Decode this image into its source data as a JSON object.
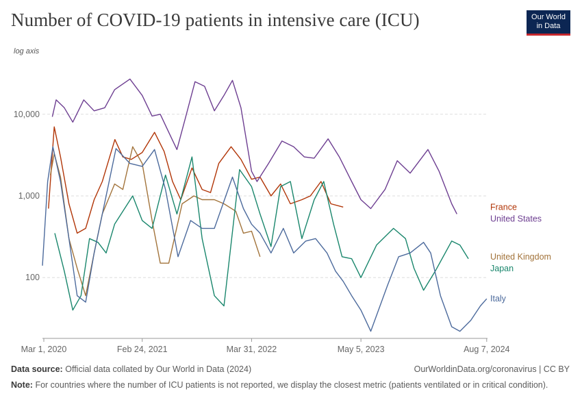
{
  "title": "Number of COVID-19 patients in intensive care (ICU)",
  "logo_text": [
    "Our World",
    "in Data"
  ],
  "axis_note": "log axis",
  "footer": {
    "source_label": "Data source:",
    "source_text": "Official data collated by Our World in Data (2024)",
    "note_label": "Note:",
    "note_text": "For countries where the number of ICU patients is not reported, we display the closest metric (patients ventilated or in critical condition).",
    "url": "OurWorldinData.org/coronavirus | CC BY"
  },
  "chart_data": {
    "type": "line",
    "title": "Number of COVID-19 patients in intensive care (ICU)",
    "yscale": "log",
    "ylim": [
      18,
      40000
    ],
    "xlim": [
      "2020-02-25",
      "2024-08-10"
    ],
    "y_ticks": [
      100,
      1000,
      10000
    ],
    "y_tick_labels": [
      "100",
      "1,000",
      "10,000"
    ],
    "x_ticks": [
      "2020-03-01",
      "2021-02-24",
      "2022-03-31",
      "2023-05-05",
      "2024-08-07"
    ],
    "x_tick_labels": [
      "Mar 1, 2020",
      "Feb 24, 2021",
      "Mar 31, 2022",
      "May 5, 2023",
      "Aug 7, 2024"
    ],
    "grid": "horizontal dashed",
    "legend": "line-end labels on right",
    "series": [
      {
        "name": "France",
        "color": "#b13507",
        "points": [
          [
            "2020-03-18",
            700
          ],
          [
            "2020-04-08",
            7000
          ],
          [
            "2020-05-01",
            3000
          ],
          [
            "2020-06-01",
            800
          ],
          [
            "2020-07-01",
            350
          ],
          [
            "2020-08-01",
            400
          ],
          [
            "2020-09-01",
            900
          ],
          [
            "2020-10-01",
            1500
          ],
          [
            "2020-11-16",
            4900
          ],
          [
            "2020-12-15",
            3000
          ],
          [
            "2021-01-15",
            2800
          ],
          [
            "2021-02-24",
            3400
          ],
          [
            "2021-04-10",
            6000
          ],
          [
            "2021-05-15",
            3500
          ],
          [
            "2021-06-15",
            1500
          ],
          [
            "2021-07-15",
            900
          ],
          [
            "2021-08-25",
            2200
          ],
          [
            "2021-10-01",
            1200
          ],
          [
            "2021-11-01",
            1100
          ],
          [
            "2021-12-01",
            2500
          ],
          [
            "2022-01-15",
            4000
          ],
          [
            "2022-02-20",
            2800
          ],
          [
            "2022-03-31",
            1600
          ],
          [
            "2022-05-01",
            1700
          ],
          [
            "2022-06-10",
            1000
          ],
          [
            "2022-07-15",
            1400
          ],
          [
            "2022-08-20",
            800
          ],
          [
            "2022-10-01",
            900
          ],
          [
            "2022-11-01",
            1000
          ],
          [
            "2022-12-10",
            1500
          ],
          [
            "2023-01-15",
            800
          ],
          [
            "2023-03-01",
            730
          ]
        ]
      },
      {
        "name": "United States",
        "color": "#6d3e91",
        "points": [
          [
            "2020-04-01",
            9300
          ],
          [
            "2020-04-15",
            15000
          ],
          [
            "2020-05-15",
            12000
          ],
          [
            "2020-06-15",
            8000
          ],
          [
            "2020-07-25",
            15000
          ],
          [
            "2020-09-01",
            11000
          ],
          [
            "2020-10-10",
            12000
          ],
          [
            "2020-11-15",
            20000
          ],
          [
            "2021-01-10",
            27000
          ],
          [
            "2021-02-24",
            17000
          ],
          [
            "2021-04-01",
            9500
          ],
          [
            "2021-05-01",
            10000
          ],
          [
            "2021-06-01",
            6000
          ],
          [
            "2021-07-01",
            3700
          ],
          [
            "2021-08-01",
            9000
          ],
          [
            "2021-09-05",
            25000
          ],
          [
            "2021-10-10",
            22000
          ],
          [
            "2021-11-15",
            11000
          ],
          [
            "2021-12-20",
            17000
          ],
          [
            "2022-01-20",
            26000
          ],
          [
            "2022-02-20",
            12000
          ],
          [
            "2022-03-31",
            2000
          ],
          [
            "2022-04-20",
            1500
          ],
          [
            "2022-06-01",
            2500
          ],
          [
            "2022-07-20",
            4700
          ],
          [
            "2022-09-01",
            4000
          ],
          [
            "2022-10-10",
            3000
          ],
          [
            "2022-11-15",
            2900
          ],
          [
            "2023-01-05",
            5000
          ],
          [
            "2023-02-15",
            3000
          ],
          [
            "2023-04-01",
            1500
          ],
          [
            "2023-05-05",
            900
          ],
          [
            "2023-06-10",
            700
          ],
          [
            "2023-08-01",
            1200
          ],
          [
            "2023-09-15",
            2700
          ],
          [
            "2023-11-01",
            1900
          ],
          [
            "2024-01-05",
            3700
          ],
          [
            "2024-02-15",
            2000
          ],
          [
            "2024-04-01",
            800
          ],
          [
            "2024-04-20",
            600
          ]
        ]
      },
      {
        "name": "United Kingdom",
        "color": "#a2733a",
        "points": [
          [
            "2020-03-25",
            1800
          ],
          [
            "2020-04-08",
            3300
          ],
          [
            "2020-05-01",
            1700
          ],
          [
            "2020-06-01",
            300
          ],
          [
            "2020-07-01",
            130
          ],
          [
            "2020-08-01",
            60
          ],
          [
            "2020-09-01",
            200
          ],
          [
            "2020-10-01",
            600
          ],
          [
            "2020-11-15",
            1400
          ],
          [
            "2020-12-15",
            1200
          ],
          [
            "2021-01-20",
            4000
          ],
          [
            "2021-02-24",
            2500
          ],
          [
            "2021-04-01",
            500
          ],
          [
            "2021-05-01",
            150
          ],
          [
            "2021-06-01",
            150
          ],
          [
            "2021-07-20",
            800
          ],
          [
            "2021-09-01",
            1000
          ],
          [
            "2021-10-01",
            900
          ],
          [
            "2021-11-15",
            900
          ],
          [
            "2021-12-20",
            800
          ],
          [
            "2022-02-01",
            650
          ],
          [
            "2022-03-01",
            350
          ],
          [
            "2022-03-31",
            370
          ],
          [
            "2022-05-01",
            180
          ]
        ]
      },
      {
        "name": "Japan",
        "color": "#19866c",
        "points": [
          [
            "2020-04-10",
            350
          ],
          [
            "2020-05-15",
            120
          ],
          [
            "2020-06-15",
            40
          ],
          [
            "2020-07-15",
            60
          ],
          [
            "2020-08-15",
            300
          ],
          [
            "2020-09-15",
            270
          ],
          [
            "2020-10-15",
            200
          ],
          [
            "2020-11-15",
            450
          ],
          [
            "2021-01-20",
            1000
          ],
          [
            "2021-02-24",
            500
          ],
          [
            "2021-04-01",
            400
          ],
          [
            "2021-05-20",
            1800
          ],
          [
            "2021-07-01",
            600
          ],
          [
            "2021-08-25",
            3000
          ],
          [
            "2021-10-01",
            300
          ],
          [
            "2021-11-15",
            60
          ],
          [
            "2021-12-20",
            45
          ],
          [
            "2022-02-15",
            2100
          ],
          [
            "2022-03-31",
            1300
          ],
          [
            "2022-05-01",
            600
          ],
          [
            "2022-06-10",
            240
          ],
          [
            "2022-07-15",
            1300
          ],
          [
            "2022-08-20",
            1500
          ],
          [
            "2022-10-01",
            300
          ],
          [
            "2022-11-15",
            900
          ],
          [
            "2022-12-20",
            1500
          ],
          [
            "2023-01-25",
            450
          ],
          [
            "2023-02-25",
            180
          ],
          [
            "2023-04-01",
            170
          ],
          [
            "2023-05-05",
            100
          ],
          [
            "2023-07-01",
            250
          ],
          [
            "2023-09-01",
            400
          ],
          [
            "2023-10-15",
            300
          ],
          [
            "2023-11-15",
            130
          ],
          [
            "2023-12-20",
            70
          ],
          [
            "2024-02-01",
            120
          ],
          [
            "2024-04-01",
            280
          ],
          [
            "2024-05-01",
            250
          ],
          [
            "2024-06-01",
            170
          ]
        ]
      },
      {
        "name": "Italy",
        "color": "#4c6a9c",
        "points": [
          [
            "2020-02-25",
            140
          ],
          [
            "2020-03-15",
            1500
          ],
          [
            "2020-04-03",
            4000
          ],
          [
            "2020-05-01",
            1500
          ],
          [
            "2020-06-01",
            300
          ],
          [
            "2020-07-01",
            60
          ],
          [
            "2020-08-01",
            50
          ],
          [
            "2020-09-01",
            200
          ],
          [
            "2020-10-15",
            1000
          ],
          [
            "2020-11-20",
            3800
          ],
          [
            "2021-01-10",
            2500
          ],
          [
            "2021-02-24",
            2300
          ],
          [
            "2021-04-10",
            3700
          ],
          [
            "2021-05-20",
            1200
          ],
          [
            "2021-07-05",
            180
          ],
          [
            "2021-08-20",
            500
          ],
          [
            "2021-10-01",
            400
          ],
          [
            "2021-11-15",
            400
          ],
          [
            "2022-01-20",
            1700
          ],
          [
            "2022-03-01",
            700
          ],
          [
            "2022-03-31",
            450
          ],
          [
            "2022-05-01",
            350
          ],
          [
            "2022-06-10",
            200
          ],
          [
            "2022-07-25",
            400
          ],
          [
            "2022-09-01",
            200
          ],
          [
            "2022-10-15",
            280
          ],
          [
            "2022-11-20",
            300
          ],
          [
            "2023-01-01",
            200
          ],
          [
            "2023-02-01",
            120
          ],
          [
            "2023-03-01",
            90
          ],
          [
            "2023-04-01",
            60
          ],
          [
            "2023-05-05",
            40
          ],
          [
            "2023-06-10",
            22
          ],
          [
            "2023-08-10",
            80
          ],
          [
            "2023-09-20",
            180
          ],
          [
            "2023-11-01",
            200
          ],
          [
            "2023-12-20",
            270
          ],
          [
            "2024-01-15",
            200
          ],
          [
            "2024-02-20",
            60
          ],
          [
            "2024-04-01",
            25
          ],
          [
            "2024-05-01",
            22
          ],
          [
            "2024-06-10",
            30
          ],
          [
            "2024-07-15",
            45
          ],
          [
            "2024-08-07",
            55
          ]
        ]
      }
    ]
  }
}
